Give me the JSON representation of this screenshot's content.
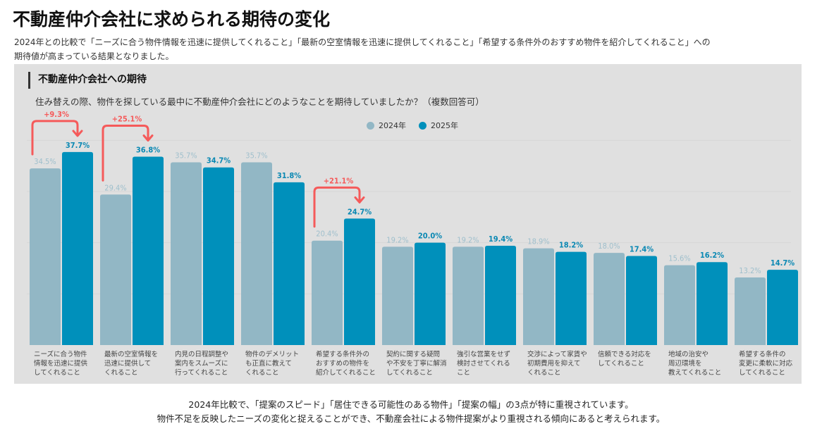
{
  "header": {
    "title": "不動産仲介会社に求められる期待の変化",
    "lead_line1": "2024年との比較で「ニーズに合う物件情報を迅速に提供してくれること」「最新の空室情報を迅速に提供してくれること」「希望する条件外のおすすめ物件を紹介してくれること」への",
    "lead_line2": "期待値が高まっている結果となりました。"
  },
  "panel": {
    "title": "不動産仲介会社への期待",
    "question": "住み替えの際、物件を探している最中に不動産仲介会社にどのようなことを期待していましたか？（複数回答可）"
  },
  "colors": {
    "series_2024": "#92b7c5",
    "series_2025": "#0090bb",
    "label_2024": "#9fbfcc",
    "label_2025": "#0a88b3",
    "annotation": "#f55a5a",
    "grid": "#d6d6d6",
    "panel_bg": "#e0e0e0"
  },
  "chart_data": {
    "type": "bar",
    "title": "不動産仲介会社への期待",
    "xlabel": "",
    "ylabel": "",
    "ylim": [
      0,
      40
    ],
    "grid": true,
    "legend_position": "top-center",
    "categories": [
      "ニーズに合う物件\n情報を迅速に提供\nしてくれること",
      "最新の空室情報を\n迅速に提供して\nくれること",
      "内見の日程調整や\n案内をスムーズに\n行ってくれること",
      "物件のデメリット\nも正直に教えて\nくれること",
      "希望する条件外の\nおすすめの物件を\n紹介してくれること",
      "契約に関する疑問\nや不安を丁寧に解消\nしてくれること",
      "強引な営業をせず\n検討させてくれる\nこと",
      "交渉によって家賃や\n初期費用を抑えて\nくれること",
      "信頼できる対応を\nしてくれること",
      "地域の治安や\n周辺環境を\n教えてくれること",
      "希望する条件の\n変更に柔軟に対応\nしてくれること"
    ],
    "series": [
      {
        "name": "2024年",
        "values": [
          34.5,
          29.4,
          35.7,
          35.7,
          20.4,
          19.2,
          19.2,
          18.9,
          18.0,
          15.6,
          13.2
        ]
      },
      {
        "name": "2025年",
        "values": [
          37.7,
          36.8,
          34.7,
          31.8,
          24.7,
          20.0,
          19.4,
          18.2,
          17.4,
          16.2,
          14.7
        ]
      }
    ],
    "value_labels_2024": [
      "34.5%",
      "29.4%",
      "35.7%",
      "35.7%",
      "20.4%",
      "19.2%",
      "19.2%",
      "18.9%",
      "18.0%",
      "15.6%",
      "13.2%"
    ],
    "value_labels_2025": [
      "37.7%",
      "36.8%",
      "34.7%",
      "31.8%",
      "24.7%",
      "20.0%",
      "19.4%",
      "18.2%",
      "17.4%",
      "16.2%",
      "14.7%"
    ],
    "annotations": [
      {
        "category_index": 0,
        "text": "+9.3%"
      },
      {
        "category_index": 1,
        "text": "+25.1%"
      },
      {
        "category_index": 4,
        "text": "+21.1%"
      }
    ]
  },
  "footer": {
    "line1": "2024年比較で、「提案のスピード」「居住できる可能性のある物件」「提案の幅」の3点が特に重視されています。",
    "line2": "物件不足を反映したニーズの変化と捉えることができ、不動産会社による物件提案がより重視される傾向にあると考えられます。"
  }
}
